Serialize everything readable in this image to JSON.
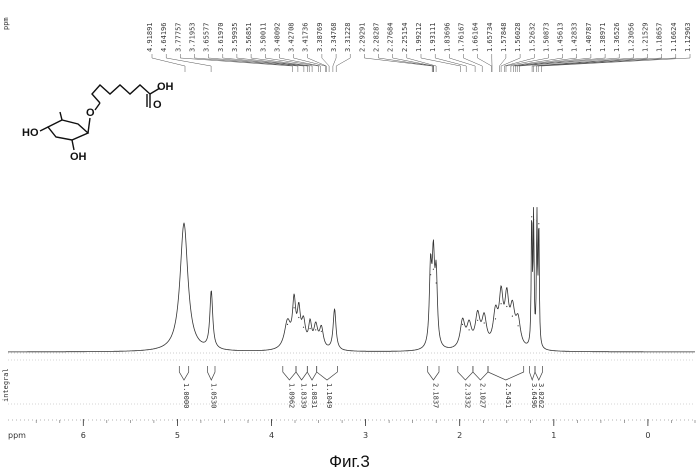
{
  "figure": {
    "caption": "Фиг.3",
    "chart_data": {
      "type": "line",
      "title": "",
      "xlabel": "ppm",
      "ylabel": "",
      "x_reversed": true,
      "xlim": [
        6.8,
        -0.5
      ],
      "x_ticks": [
        "6",
        "5",
        "4",
        "3",
        "2",
        "1",
        "0"
      ],
      "x_tick_values": [
        6,
        5,
        4,
        3,
        2,
        1,
        0
      ],
      "grid": false,
      "peak_labels": [
        "4.91891",
        "4.64196",
        "3.77757",
        "3.71953",
        "3.65577",
        "3.61970",
        "3.59935",
        "3.56851",
        "3.50011",
        "3.48092",
        "3.42708",
        "3.41736",
        "3.38769",
        "3.34768",
        "3.31228",
        "2.29291",
        "2.28287",
        "2.27684",
        "2.25154",
        "1.99212",
        "1.93111",
        "1.83696",
        "1.76167",
        "1.66164",
        "1.65734",
        "1.57848",
        "1.56028",
        "1.52632",
        "1.50873",
        "1.45613",
        "1.42833",
        "1.40787",
        "1.38971",
        "1.36526",
        "1.23056",
        "1.21529",
        "1.18657",
        "1.16624",
        "1.12963"
      ],
      "integrals": [
        "1.0000",
        "1.0530",
        "1.0962",
        "1.8339",
        "1.0831",
        "1.1049",
        "2.1837",
        "2.3332",
        "2.1027",
        "2.5451",
        "3.6496",
        "3.0262"
      ],
      "peaks": [
        {
          "x": 4.93,
          "h": 0.93,
          "w": 0.05
        },
        {
          "x": 4.64,
          "h": 0.42,
          "w": 0.018
        },
        {
          "x": 3.83,
          "h": 0.2,
          "w": 0.04
        },
        {
          "x": 3.76,
          "h": 0.32,
          "w": 0.02
        },
        {
          "x": 3.71,
          "h": 0.25,
          "w": 0.02
        },
        {
          "x": 3.66,
          "h": 0.18,
          "w": 0.025
        },
        {
          "x": 3.59,
          "h": 0.17,
          "w": 0.02
        },
        {
          "x": 3.53,
          "h": 0.16,
          "w": 0.025
        },
        {
          "x": 3.47,
          "h": 0.15,
          "w": 0.025
        },
        {
          "x": 3.33,
          "h": 0.3,
          "w": 0.018
        },
        {
          "x": 2.31,
          "h": 0.56,
          "w": 0.015
        },
        {
          "x": 2.28,
          "h": 0.6,
          "w": 0.015
        },
        {
          "x": 2.25,
          "h": 0.5,
          "w": 0.015
        },
        {
          "x": 1.97,
          "h": 0.2,
          "w": 0.03
        },
        {
          "x": 1.9,
          "h": 0.16,
          "w": 0.03
        },
        {
          "x": 1.81,
          "h": 0.23,
          "w": 0.03
        },
        {
          "x": 1.74,
          "h": 0.21,
          "w": 0.03
        },
        {
          "x": 1.62,
          "h": 0.24,
          "w": 0.03
        },
        {
          "x": 1.56,
          "h": 0.35,
          "w": 0.025
        },
        {
          "x": 1.5,
          "h": 0.33,
          "w": 0.025
        },
        {
          "x": 1.44,
          "h": 0.26,
          "w": 0.03
        },
        {
          "x": 1.38,
          "h": 0.19,
          "w": 0.03
        },
        {
          "x": 1.235,
          "h": 0.98,
          "w": 0.006
        },
        {
          "x": 1.215,
          "h": 0.96,
          "w": 0.006
        },
        {
          "x": 1.18,
          "h": 0.95,
          "w": 0.006
        },
        {
          "x": 1.16,
          "h": 0.93,
          "w": 0.006
        }
      ]
    },
    "structure": {
      "labels": {
        "oh_top": "OH",
        "o_ring": "O",
        "ho_left": "HO",
        "oh_bottom": "OH",
        "o_chain": "O"
      }
    }
  }
}
